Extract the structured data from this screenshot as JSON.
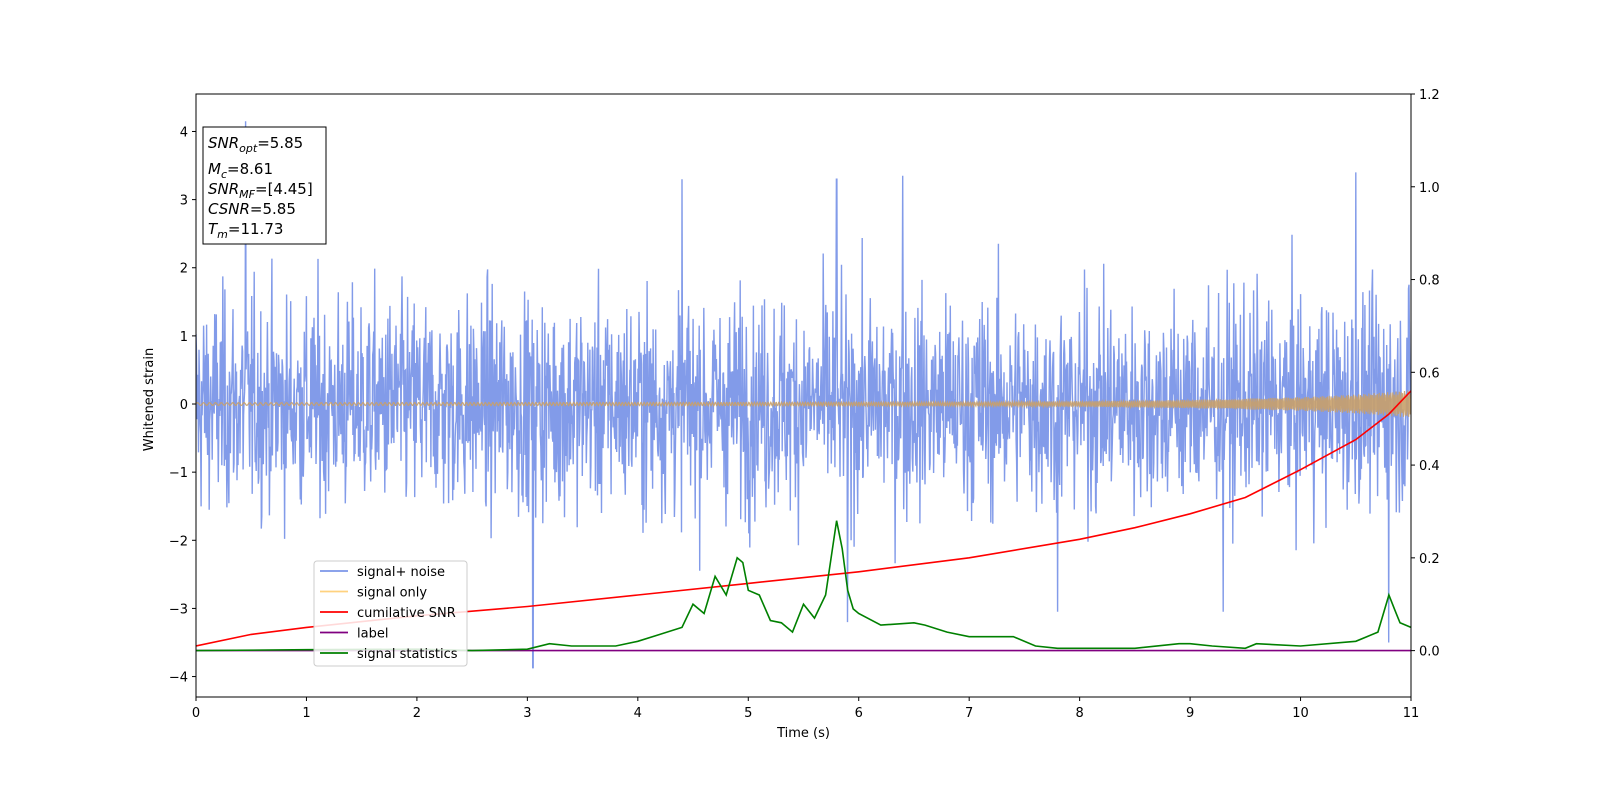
{
  "chart_data": {
    "type": "line",
    "xlabel": "Time (s)",
    "ylabel": "Whitened strain",
    "xlim": [
      0,
      11
    ],
    "ylim": [
      -4.3,
      4.55
    ],
    "y2lim": [
      -0.1,
      1.2
    ],
    "xticks": [
      0,
      1,
      2,
      3,
      4,
      5,
      6,
      7,
      8,
      9,
      10,
      11
    ],
    "yticks": [
      -4,
      -3,
      -2,
      -1,
      0,
      1,
      2,
      3,
      4
    ],
    "y2ticks": [
      0.0,
      0.2,
      0.4,
      0.6,
      0.8,
      1.0,
      1.2
    ],
    "y2tick_labels": [
      "0.0",
      "0.2",
      "0.4",
      "0.6",
      "0.8",
      "1.0",
      "1.2"
    ],
    "legend_position": "lower-left",
    "series": [
      {
        "name": "signal+ noise",
        "axis": "left",
        "color": "#7b96e8",
        "description_values": {
          "typical_range": [
            -2.6,
            2.6
          ],
          "extremes": {
            "max": 4.15,
            "max_at": 0.45,
            "min": -3.87,
            "min_at": 3.05
          },
          "peaks": [
            [
              0.45,
              4.15
            ],
            [
              4.4,
              3.3
            ],
            [
              5.8,
              3.3
            ],
            [
              6.4,
              3.35
            ],
            [
              10.5,
              3.4
            ]
          ],
          "troughs": [
            [
              3.05,
              -3.87
            ],
            [
              9.3,
              -3.05
            ],
            [
              10.8,
              -3.5
            ],
            [
              5.9,
              -3.2
            ],
            [
              7.8,
              -3.05
            ]
          ]
        }
      },
      {
        "name": "signal only",
        "axis": "left",
        "color": "#ffd27f",
        "envelope_x": [
          0,
          5,
          7,
          8,
          9,
          10,
          10.5,
          11
        ],
        "envelope_y": [
          0.02,
          0.025,
          0.03,
          0.04,
          0.06,
          0.1,
          0.14,
          0.2
        ]
      },
      {
        "name": "cumilative SNR",
        "axis": "right",
        "color": "#ff0000",
        "x": [
          0,
          0.5,
          1,
          2,
          3,
          4,
          5,
          6,
          7,
          8,
          8.5,
          9,
          9.5,
          10,
          10.5,
          10.8,
          11
        ],
        "y": [
          0.01,
          0.035,
          0.05,
          0.075,
          0.095,
          0.12,
          0.145,
          0.17,
          0.2,
          0.24,
          0.265,
          0.295,
          0.33,
          0.39,
          0.455,
          0.51,
          0.56
        ]
      },
      {
        "name": "label",
        "axis": "right",
        "color": "#800080",
        "x": [
          0,
          11
        ],
        "y": [
          0,
          0
        ]
      },
      {
        "name": "signal statistics",
        "axis": "right",
        "color": "#008000",
        "x": [
          0,
          1,
          2,
          2.5,
          3,
          3.2,
          3.4,
          3.8,
          4.0,
          4.2,
          4.4,
          4.5,
          4.6,
          4.7,
          4.8,
          4.9,
          4.95,
          5.0,
          5.1,
          5.2,
          5.3,
          5.4,
          5.5,
          5.6,
          5.7,
          5.8,
          5.85,
          5.9,
          5.95,
          6.0,
          6.2,
          6.5,
          6.6,
          6.8,
          7.0,
          7.2,
          7.4,
          7.6,
          7.8,
          8.0,
          8.5,
          8.9,
          9.0,
          9.2,
          9.5,
          9.6,
          10.0,
          10.5,
          10.6,
          10.7,
          10.8,
          10.85,
          10.9,
          11.0
        ],
        "y": [
          0.0,
          0.002,
          0.003,
          0.0,
          0.003,
          0.015,
          0.01,
          0.01,
          0.02,
          0.035,
          0.05,
          0.1,
          0.08,
          0.16,
          0.12,
          0.2,
          0.19,
          0.13,
          0.12,
          0.065,
          0.06,
          0.04,
          0.1,
          0.07,
          0.12,
          0.28,
          0.22,
          0.13,
          0.09,
          0.08,
          0.055,
          0.06,
          0.055,
          0.04,
          0.03,
          0.03,
          0.03,
          0.01,
          0.005,
          0.005,
          0.005,
          0.015,
          0.015,
          0.01,
          0.005,
          0.015,
          0.01,
          0.02,
          0.03,
          0.04,
          0.12,
          0.09,
          0.06,
          0.05
        ]
      }
    ],
    "info_box": [
      {
        "sym": "SNR",
        "sub": "opt",
        "val": "=5.85"
      },
      {
        "sym": "M",
        "sub": "c",
        "val": "=8.61"
      },
      {
        "sym": "SNR",
        "sub": "MF",
        "val": "=[4.45]"
      },
      {
        "sym": "CSNR",
        "sub": "",
        "val": "=5.85"
      },
      {
        "sym": "T",
        "sub": "m",
        "val": "=11.73"
      }
    ]
  }
}
